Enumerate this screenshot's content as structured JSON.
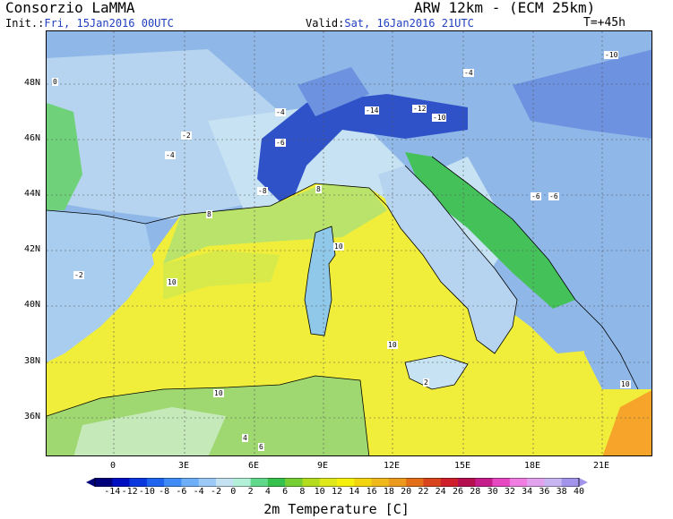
{
  "header": {
    "org": "Consorzio LaMMA",
    "model": "ARW 12km - (ECM 25km)",
    "init_label": "Init.:",
    "init_value": "Fri, 15Jan2016 00UTC",
    "valid_label": "Valid:",
    "valid_value": "Sat, 16Jan2016 21UTC",
    "forecast_step": "T=+45h"
  },
  "map": {
    "lat_labels": [
      "48N",
      "46N",
      "44N",
      "42N",
      "40N",
      "38N",
      "36N"
    ],
    "lon_labels": [
      "0",
      "3E",
      "6E",
      "9E",
      "12E",
      "15E",
      "18E",
      "21E"
    ],
    "colors": {
      "land_cold": "#8fb7e8",
      "land_very_cold": "#2f52c8",
      "sea_warm": "#f0ee3a",
      "sea_mid": "#b9e36a",
      "coast_green": "#45c15a",
      "africa_green": "#9fd870",
      "hot": "#f6a42a"
    },
    "value_labels": [
      "-2",
      "-4",
      "-6",
      "-8",
      "-10",
      "-12",
      "-14",
      "0",
      "2",
      "4",
      "6",
      "8",
      "10"
    ]
  },
  "colorbar": {
    "labels": [
      "-14",
      "-12",
      "-10",
      "-8",
      "-6",
      "-4",
      "-2",
      "0",
      "2",
      "4",
      "6",
      "8",
      "10",
      "12",
      "14",
      "16",
      "18",
      "20",
      "22",
      "24",
      "26",
      "28",
      "30",
      "32",
      "34",
      "36",
      "38",
      "40"
    ],
    "colors": [
      "#00007d",
      "#0010c0",
      "#0a38dc",
      "#1f64ef",
      "#3f8cf6",
      "#6daef8",
      "#9bcaf6",
      "#c5e2f3",
      "#b3f0d8",
      "#62d88c",
      "#35c14b",
      "#75cf32",
      "#b3dc1f",
      "#dfe81a",
      "#f5f10d",
      "#f2d50f",
      "#efb81b",
      "#eb9a1e",
      "#e37019",
      "#d8451c",
      "#cf1f2a",
      "#b40f4e",
      "#c51e8c",
      "#e548c1",
      "#f17de2",
      "#e2a2f0",
      "#c7b6f3",
      "#a294eb"
    ],
    "caption": "2m Temperature [C]"
  }
}
